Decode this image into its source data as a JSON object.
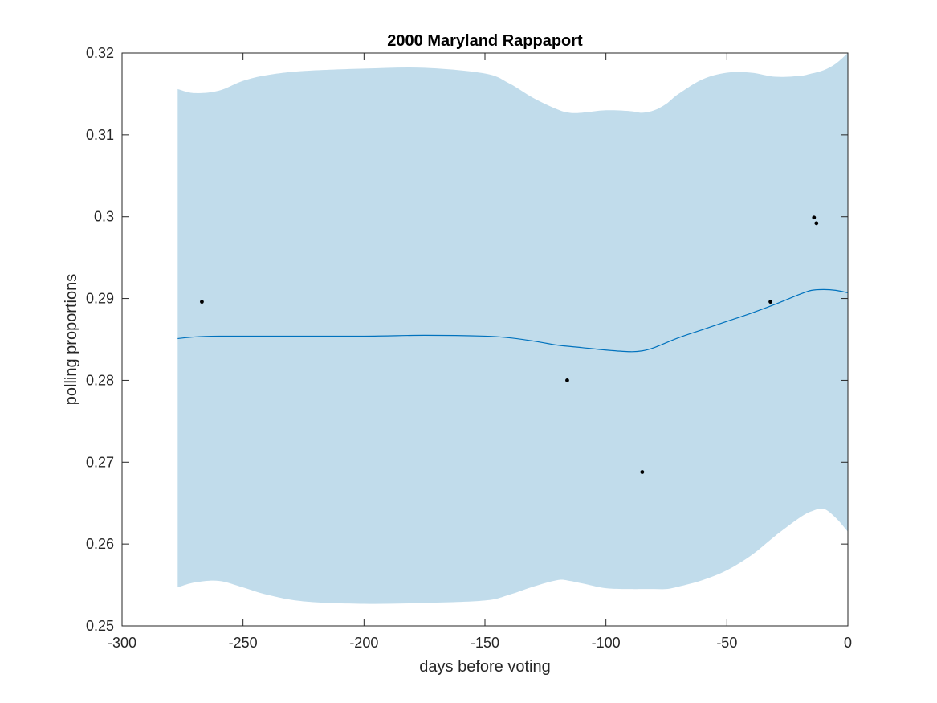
{
  "chart_data": {
    "type": "line",
    "title": "2000 Maryland Rappaport",
    "xlabel": "days before voting",
    "ylabel": "polling proportions",
    "xlim": [
      -300,
      0
    ],
    "ylim": [
      0.25,
      0.32
    ],
    "xticks": [
      -300,
      -250,
      -200,
      -150,
      -100,
      -50,
      0
    ],
    "xtick_labels": [
      "-300",
      "-250",
      "-200",
      "-150",
      "-100",
      "-50",
      "0"
    ],
    "yticks": [
      0.25,
      0.26,
      0.27,
      0.28,
      0.29,
      0.3,
      0.31,
      0.32
    ],
    "ytick_labels": [
      "0.25",
      "0.26",
      "0.27",
      "0.28",
      "0.29",
      "0.3",
      "0.31",
      "0.32"
    ],
    "grid": false,
    "colors": {
      "band": "#c1dceb",
      "line": "#0072bd",
      "points": "#000000",
      "axes": "#262626"
    },
    "series": [
      {
        "type": "area-band",
        "x": [
          -277,
          -270,
          -260,
          -250,
          -240,
          -225,
          -200,
          -175,
          -150,
          -140,
          -130,
          -120,
          -115,
          -110,
          -100,
          -90,
          -85,
          -80,
          -75,
          -70,
          -60,
          -50,
          -40,
          -30,
          -20,
          -15,
          -10,
          -5,
          0
        ],
        "upper": [
          0.3156,
          0.3151,
          0.3154,
          0.3166,
          0.3173,
          0.3178,
          0.3181,
          0.3182,
          0.3175,
          0.3163,
          0.3145,
          0.3131,
          0.3127,
          0.3127,
          0.313,
          0.3129,
          0.3127,
          0.313,
          0.3138,
          0.315,
          0.3168,
          0.3176,
          0.3176,
          0.3171,
          0.3172,
          0.3175,
          0.3179,
          0.3187,
          0.32
        ],
        "lower": [
          0.2547,
          0.2553,
          0.2555,
          0.2547,
          0.2538,
          0.253,
          0.2527,
          0.2528,
          0.2531,
          0.2538,
          0.2548,
          0.2556,
          0.2555,
          0.2552,
          0.2546,
          0.2545,
          0.2545,
          0.2545,
          0.2545,
          0.2548,
          0.2556,
          0.2568,
          0.2586,
          0.261,
          0.2632,
          0.264,
          0.2643,
          0.2632,
          0.2615
        ]
      },
      {
        "type": "line",
        "x": [
          -277,
          -270,
          -260,
          -240,
          -200,
          -175,
          -150,
          -140,
          -130,
          -120,
          -110,
          -100,
          -90,
          -85,
          -80,
          -70,
          -60,
          -50,
          -40,
          -30,
          -20,
          -15,
          -10,
          -5,
          0
        ],
        "y": [
          0.2851,
          0.2853,
          0.2854,
          0.2854,
          0.2854,
          0.2855,
          0.2854,
          0.2852,
          0.2848,
          0.2843,
          0.284,
          0.2837,
          0.2835,
          0.2836,
          0.284,
          0.2852,
          0.2862,
          0.2872,
          0.2882,
          0.2893,
          0.2905,
          0.291,
          0.2911,
          0.291,
          0.2907
        ]
      },
      {
        "type": "scatter",
        "x": [
          -267,
          -116,
          -85,
          -32,
          -14,
          -13
        ],
        "y": [
          0.2896,
          0.28,
          0.2688,
          0.2896,
          0.2999,
          0.2992
        ]
      }
    ]
  }
}
